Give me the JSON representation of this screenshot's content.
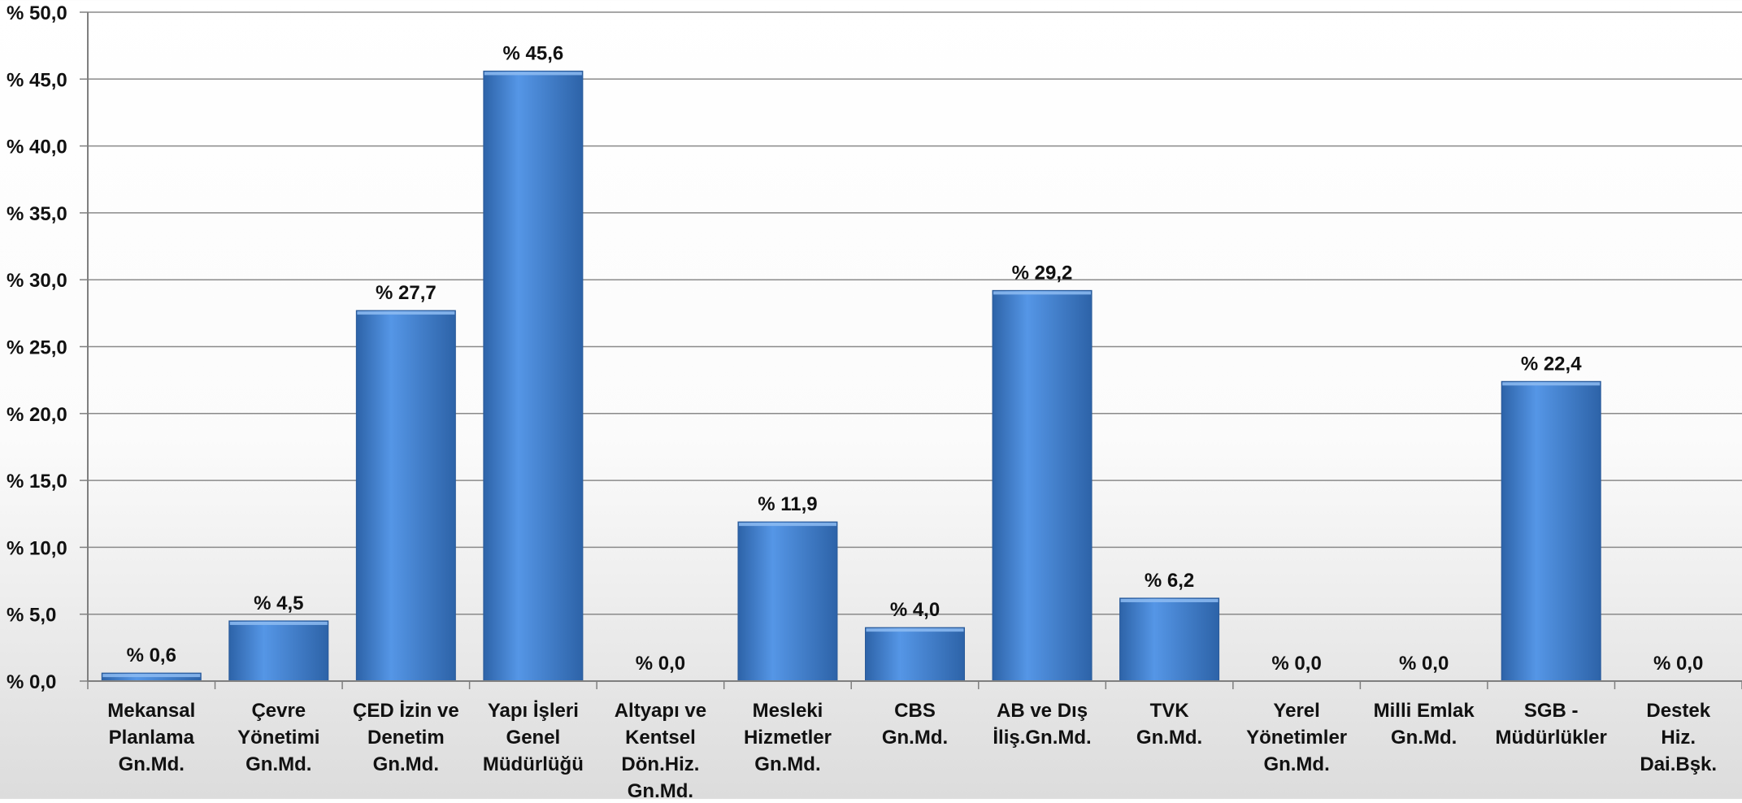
{
  "chart_data": {
    "type": "bar",
    "title": "",
    "xlabel": "",
    "ylabel": "",
    "ylim": [
      0,
      50
    ],
    "y_ticks": [
      0,
      5,
      10,
      15,
      20,
      25,
      30,
      35,
      40,
      45,
      50
    ],
    "y_tick_labels": [
      "% 0,0",
      "% 5,0",
      "% 10,0",
      "% 15,0",
      "% 20,0",
      "% 25,0",
      "% 30,0",
      "% 35,0",
      "% 40,0",
      "% 45,0",
      "% 50,0"
    ],
    "grid": true,
    "categories": [
      [
        "Mekansal",
        "Planlama",
        "Gn.Md."
      ],
      [
        "Çevre",
        "Yönetimi",
        "Gn.Md."
      ],
      [
        "ÇED İzin ve",
        "Denetim",
        "Gn.Md."
      ],
      [
        "Yapı İşleri",
        "Genel",
        "Müdürlüğü"
      ],
      [
        "Altyapı ve",
        "Kentsel",
        "Dön.Hiz.",
        "Gn.Md."
      ],
      [
        "Mesleki",
        "Hizmetler",
        "Gn.Md."
      ],
      [
        "CBS",
        "Gn.Md."
      ],
      [
        "AB ve Dış",
        "İliş.Gn.Md."
      ],
      [
        "TVK",
        "Gn.Md."
      ],
      [
        "Yerel",
        "Yönetimler",
        "Gn.Md."
      ],
      [
        "Milli Emlak",
        "Gn.Md."
      ],
      [
        "SGB -",
        "Müdürlükler"
      ],
      [
        "Destek",
        "Hiz.",
        "Dai.Bşk."
      ]
    ],
    "values": [
      0.6,
      4.5,
      27.7,
      45.6,
      0.0,
      11.9,
      4.0,
      29.2,
      6.2,
      0.0,
      0.0,
      22.4,
      0.0
    ],
    "data_labels": [
      "% 0,6",
      "% 4,5",
      "% 27,7",
      "% 45,6",
      "% 0,0",
      "% 11,9",
      "% 4,0",
      "% 29,2",
      "% 6,2",
      "% 0,0",
      "% 0,0",
      "% 22,4",
      "% 0,0"
    ],
    "colors": {
      "bar": "#3f7fd0",
      "bar_light": "#5596e6",
      "bar_dark": "#2d63a8",
      "grid": "#8a8a8a",
      "axis": "#7f7f7f",
      "text": "#111111"
    }
  }
}
